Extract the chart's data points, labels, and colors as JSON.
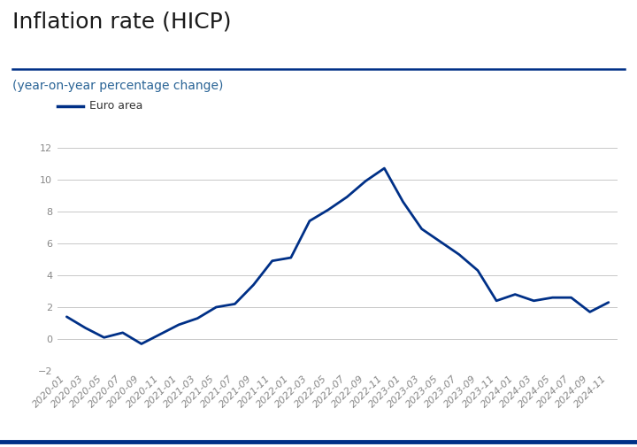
{
  "title": "Inflation rate (HICP)",
  "subtitle": "(year-on-year percentage change)",
  "legend_label": "Euro area",
  "title_color": "#1a1a1a",
  "subtitle_color": "#2a6496",
  "line_color": "#003087",
  "background_color": "#ffffff",
  "grid_color": "#c8c8c8",
  "tick_color": "#888888",
  "sep_line_color": "#003087",
  "bottom_line_color": "#003087",
  "ylim": [
    -2,
    12
  ],
  "yticks": [
    -2,
    0,
    2,
    4,
    6,
    8,
    10,
    12
  ],
  "x_labels": [
    "2020-01",
    "2020-03",
    "2020-05",
    "2020-07",
    "2020-09",
    "2020-11",
    "2021-01",
    "2021-03",
    "2021-05",
    "2021-07",
    "2021-09",
    "2021-11",
    "2022-01",
    "2022-03",
    "2022-05",
    "2022-07",
    "2022-09",
    "2022-11",
    "2023-01",
    "2023-03",
    "2023-05",
    "2023-07",
    "2023-09",
    "2023-11",
    "2024-01",
    "2024-03",
    "2024-05",
    "2024-07",
    "2024-09",
    "2024-11"
  ],
  "values": [
    1.4,
    0.7,
    0.1,
    0.4,
    -0.3,
    0.3,
    0.9,
    1.3,
    2.0,
    2.2,
    3.4,
    4.9,
    5.1,
    7.4,
    8.1,
    8.9,
    9.9,
    10.7,
    8.6,
    6.9,
    6.1,
    5.3,
    4.3,
    2.4,
    2.8,
    2.4,
    2.6,
    2.6,
    1.7,
    2.3
  ],
  "title_fontsize": 18,
  "subtitle_fontsize": 10,
  "legend_fontsize": 9,
  "tick_fontsize": 8
}
